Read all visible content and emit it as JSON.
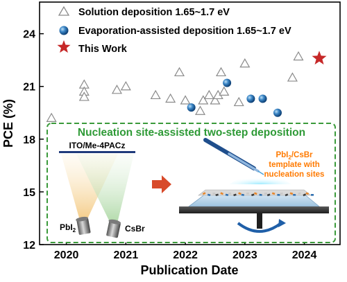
{
  "chart_data": {
    "type": "scatter",
    "ylabel": "PCE (%)",
    "xlabel": "Publication Date",
    "xlim": [
      2019.55,
      2024.6
    ],
    "ylim": [
      12,
      25.8
    ],
    "xticks": [
      2020,
      2021,
      2022,
      2023,
      2024
    ],
    "xtick_labels": [
      "2020",
      "2021",
      "2022",
      "2023",
      "2024"
    ],
    "yticks": [
      12,
      15,
      18,
      21,
      24
    ],
    "ytick_labels": [
      "12",
      "15",
      "18",
      "21",
      "24"
    ],
    "legend_position": "top",
    "series": [
      {
        "name": "Solution deposition 1.65~1.7 eV",
        "marker": "open-triangle",
        "color": "#8a8a8a",
        "points": [
          [
            2019.75,
            19.2
          ],
          [
            2020.3,
            21.1
          ],
          [
            2020.3,
            20.7
          ],
          [
            2020.3,
            20.4
          ],
          [
            2020.85,
            20.8
          ],
          [
            2021.0,
            21.0
          ],
          [
            2021.5,
            20.5
          ],
          [
            2021.75,
            20.3
          ],
          [
            2021.9,
            21.8
          ],
          [
            2022.0,
            20.2
          ],
          [
            2022.25,
            19.6
          ],
          [
            2022.3,
            20.2
          ],
          [
            2022.4,
            20.5
          ],
          [
            2022.5,
            20.2
          ],
          [
            2022.55,
            20.5
          ],
          [
            2022.6,
            21.8
          ],
          [
            2022.65,
            20.7
          ],
          [
            2022.9,
            20.1
          ],
          [
            2023.0,
            22.3
          ],
          [
            2023.8,
            21.5
          ],
          [
            2023.9,
            22.7
          ]
        ]
      },
      {
        "name": "Evaporation-assisted deposition 1.65~1.7 eV",
        "marker": "filled-circle",
        "color": "#1a5d9c",
        "points": [
          [
            2022.1,
            19.8
          ],
          [
            2022.7,
            21.2
          ],
          [
            2023.1,
            20.3
          ],
          [
            2023.3,
            20.3
          ],
          [
            2023.55,
            19.5
          ]
        ]
      },
      {
        "name": "This Work",
        "marker": "star",
        "color": "#c62828",
        "points": [
          [
            2024.25,
            22.6
          ]
        ]
      }
    ]
  },
  "inset": {
    "title": "Nucleation site-assisted two-step deposition",
    "substrate_label": "ITO/Me-4PACz",
    "source_left_main": "PbI",
    "source_left_sub": "2",
    "source_right": "CsBr",
    "template_line1_main": "PbI",
    "template_line1_sub": "2",
    "template_line1_rest": "/CsBr",
    "template_line2": "template with",
    "template_line3": "nucleation sites"
  },
  "colors": {
    "inset_border": "#3a9a3a",
    "inset_title": "#2e9a36",
    "arrow": "#d84a2a",
    "template_text": "#ff7a00"
  }
}
